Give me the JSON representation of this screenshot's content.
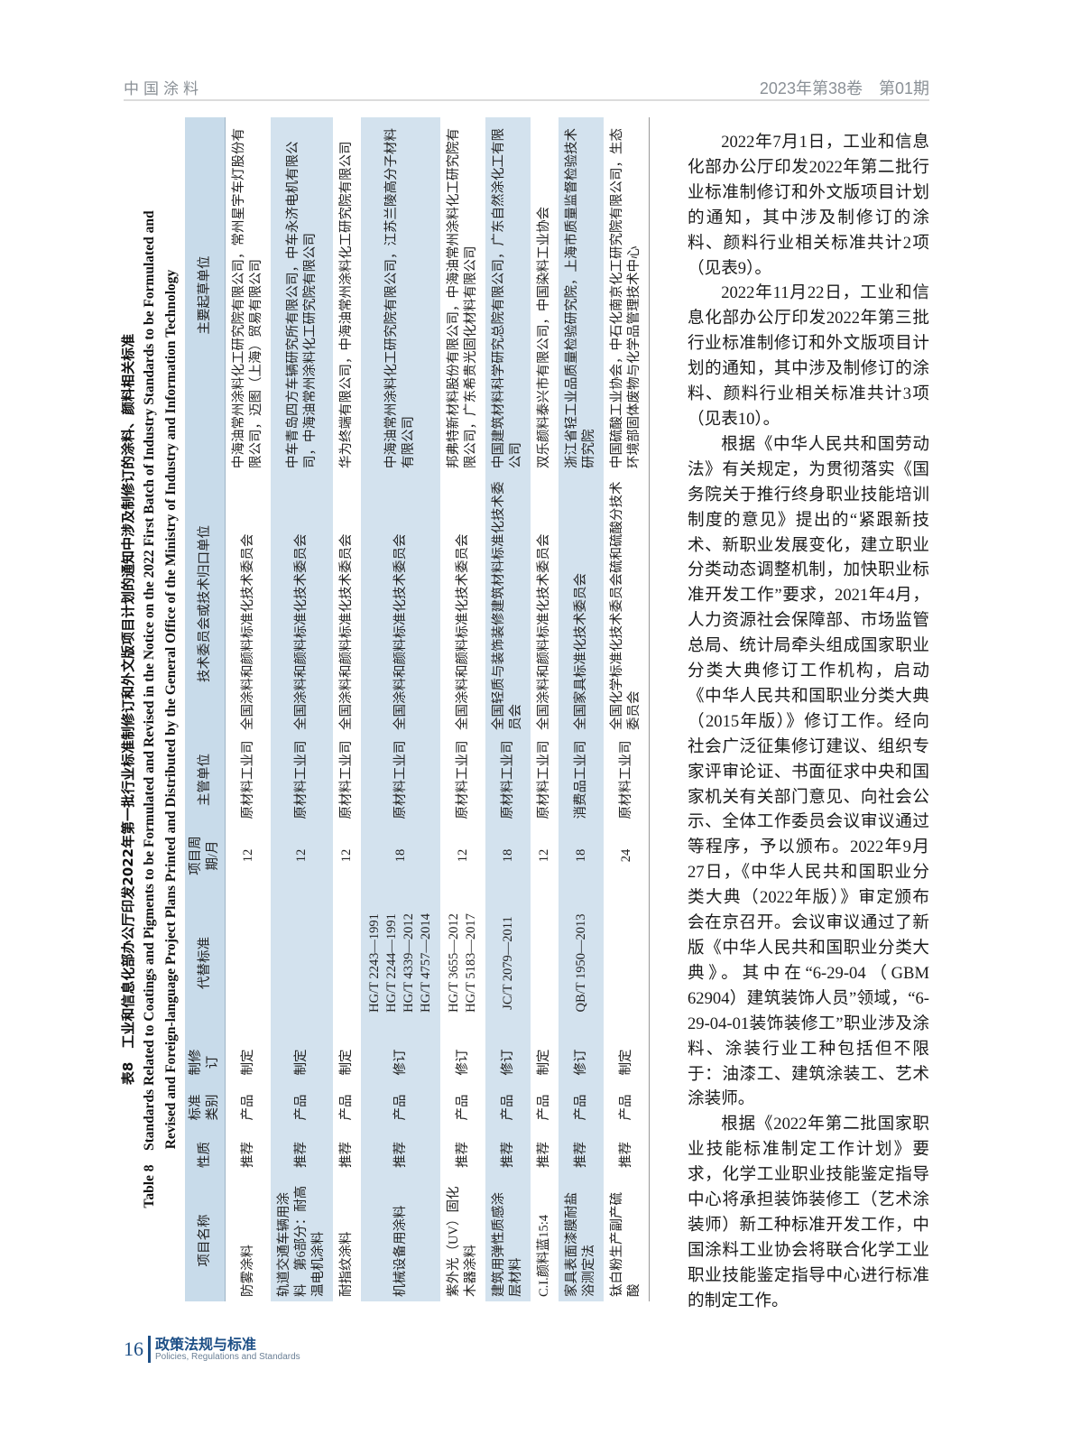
{
  "header": {
    "journal": "中国涂料",
    "issue": "2023年第38卷　第01期"
  },
  "table": {
    "title_cn": "表8　工业和信息化部办公厅印发2022年第一批行业标准制修订和外文版项目计划的通知中涉及制修订的涂料、颜料相关标准",
    "title_en_1": "Table 8　Standards Related to Coatings and Pigments to be Formulated and Revised in the Notice on the 2022 First Batch of Industry Standards to be Formulated and",
    "title_en_2": "Revised and Foreign-language Project Plans Printed and Distributed by the General Office of the Ministry of Industry and Information Technology",
    "columns": [
      "项目名称",
      "性质",
      "标准类别",
      "制修订",
      "代替标准",
      "项目周期/月",
      "主管单位",
      "技术委员会或技术归口单位",
      "主要起草单位"
    ],
    "rows": [
      [
        "防雾涂料",
        "推荐",
        "产品",
        "制定",
        "",
        "12",
        "原材料工业司",
        "全国涂料和颜料标准化技术委员会",
        "中海油常州涂料化工研究院有限公司，常州星宇车灯股份有限公司，迈图（上海）贸易有限公司"
      ],
      [
        "轨道交通车辆用涂料　第6部分：耐高温电机涂料",
        "推荐",
        "产品",
        "制定",
        "",
        "12",
        "原材料工业司",
        "全国涂料和颜料标准化技术委员会",
        "中车青岛四方车辆研究所有限公司，中车永济电机有限公司，中海油常州涂料化工研究院有限公司"
      ],
      [
        "耐指纹涂料",
        "推荐",
        "产品",
        "制定",
        "",
        "12",
        "原材料工业司",
        "全国涂料和颜料标准化技术委员会",
        "华为终端有限公司，中海油常州涂料化工研究院有限公司"
      ],
      [
        "机械设备用涂料",
        "推荐",
        "产品",
        "修订",
        "HG/T 2243—1991\nHG/T 2244—1991\nHG/T 4339—2012\nHG/T 4757—2014",
        "18",
        "原材料工业司",
        "全国涂料和颜料标准化技术委员会",
        "中海油常州涂料化工研究院有限公司，江苏兰陵高分子材料有限公司"
      ],
      [
        "紫外光（UV）固化木器涂料",
        "推荐",
        "产品",
        "修订",
        "HG/T 3655—2012\nHG/T 5183—2017",
        "12",
        "原材料工业司",
        "全国涂料和颜料标准化技术委员会",
        "邦弗特新材料股份有限公司，中海油常州涂料化工研究院有限公司，广东希贵光固化材料有限公司"
      ],
      [
        "建筑用弹性质感涂层材料",
        "推荐",
        "产品",
        "修订",
        "JC/T 2079—2011",
        "18",
        "原材料工业司",
        "全国轻质与装饰装修建筑材料标准化技术委员会",
        "中国建筑材料科学研究总院有限公司，广东自然涂化工有限公司"
      ],
      [
        "C.I.颜料蓝15:4",
        "推荐",
        "产品",
        "制定",
        "",
        "12",
        "原材料工业司",
        "全国涂料和颜料标准化技术委员会",
        "双乐颜料泰兴市有限公司，中国染料工业协会"
      ],
      [
        "家具表面漆膜耐盐浴测定法",
        "推荐",
        "产品",
        "修订",
        "QB/T 1950—2013",
        "18",
        "消费品工业司",
        "全国家具标准化技术委员会",
        "浙江省轻工业品质量检验研究院，上海市质量监督检验技术研究院"
      ],
      [
        "钛白粉生产副产硫酸",
        "推荐",
        "产品",
        "制定",
        "",
        "24",
        "原材料工业司",
        "全国化学标准化技术委员会硫和硫酸分技术委员会",
        "中国硫酸工业协会，中石化南京化工研究院有限公司，生态环境部固体废物与化学品管理技术中心"
      ]
    ]
  },
  "body": {
    "paragraphs": [
      "2022年7月1日，工业和信息化部办公厅印发2022年第二批行业标准制修订和外文版项目计划的通知，其中涉及制修订的涂料、颜料行业相关标准共计2项（见表9）。",
      "2022年11月22日，工业和信息化部办公厅印发2022年第三批行业标准制修订和外文版项目计划的通知，其中涉及制修订的涂料、颜料行业相关标准共计3项（见表10）。",
      "根据《中华人民共和国劳动法》有关规定，为贯彻落实《国务院关于推行终身职业技能培训制度的意见》提出的“紧跟新技术、新职业发展变化，建立职业分类动态调整机制，加快职业标准开发工作”要求，2021年4月，人力资源社会保障部、市场监管总局、统计局牵头组成国家职业分类大典修订工作机构，启动《中华人民共和国职业分类大典（2015年版）》修订工作。经向社会广泛征集修订建议、组织专家评审论证、书面征求中央和国家机关有关部门意见、向社会公示、全体工作委员会议审议通过等程序，予以颁布。2022年9月27日，《中华人民共和国职业分类大典（2022年版）》审定颁布会在京召开。会议审议通过了新版《中华人民共和国职业分类大典》。其中在“6-29-04（GBM 62904）建筑装饰人员”领域，“6-29-04-01装饰装修工”职业涉及涂料、涂装行业工种包括但不限于：油漆工、建筑涂装工、艺术涂装师。",
      "根据《2022年第二批国家职业技能标准制定工作计划》要求，化学工业职业技能鉴定指导中心将承担装饰装修工（艺术涂装师）新工种标准开发工作，中国涂料工业协会将联合化学工业职业技能鉴定指导中心进行标准的制定工作。"
    ]
  },
  "footer": {
    "page": "16",
    "section_cn": "政策法规与标准",
    "section_en": "Policies, Regulations and Standards"
  },
  "colors": {
    "accent": "#1d4f86",
    "table_shade": "#c8dbea"
  }
}
